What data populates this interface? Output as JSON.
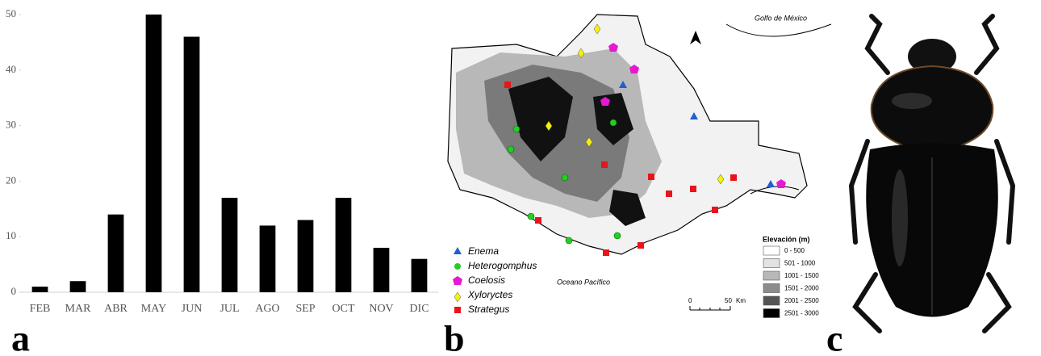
{
  "chart_data": {
    "type": "bar",
    "categories": [
      "FEB",
      "MAR",
      "ABR",
      "MAY",
      "JUN",
      "JUL",
      "AGO",
      "SEP",
      "OCT",
      "NOV",
      "DIC"
    ],
    "values": [
      1,
      2,
      14,
      50,
      46,
      17,
      12,
      13,
      17,
      8,
      6
    ],
    "color": "#000000",
    "ylim": [
      0,
      50
    ],
    "yticks": [
      0,
      10,
      20,
      30,
      40,
      50
    ]
  },
  "panels": [
    "a",
    "b",
    "c"
  ],
  "map": {
    "gulf": "Golfo de México",
    "ocean": "Oceano Pacífico",
    "legend": [
      "Enema",
      "Heterogomphus",
      "Coelosis",
      "Xyloryctes",
      "Strategus"
    ],
    "elevation": {
      "title": "Elevación (m)",
      "ranges": [
        "0 - 500",
        "501 - 1000",
        "1001 - 1500",
        "1501 - 2000",
        "2001 - 2500",
        "2501 - 3000"
      ]
    },
    "scale": {
      "ticks": [
        "0",
        "50"
      ],
      "unit": "Km"
    }
  }
}
